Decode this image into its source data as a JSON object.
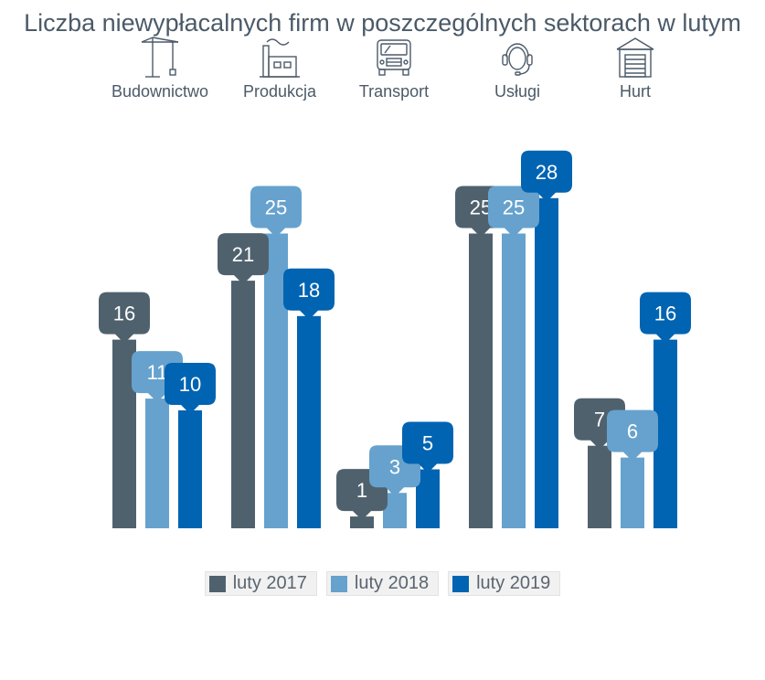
{
  "colors": {
    "s2017": "#50616e",
    "s2018": "#66a2cd",
    "s2019": "#0064b2"
  },
  "icons": [
    "crane-icon",
    "factory-icon",
    "truck-icon",
    "headset-icon",
    "warehouse-icon"
  ],
  "chart_data": {
    "type": "bar",
    "title": "Liczba niewypłacalnych firm w poszczególnych sektorach w lutym",
    "categories": [
      "Budownictwo",
      "Produkcja",
      "Transport",
      "Usługi",
      "Hurt"
    ],
    "series": [
      {
        "name": "luty 2017",
        "values": [
          16,
          21,
          1,
          25,
          7
        ]
      },
      {
        "name": "luty 2018",
        "values": [
          11,
          25,
          3,
          25,
          6
        ]
      },
      {
        "name": "luty 2019",
        "values": [
          10,
          18,
          5,
          28,
          16
        ]
      }
    ],
    "legend": "bottom",
    "grid": false
  }
}
